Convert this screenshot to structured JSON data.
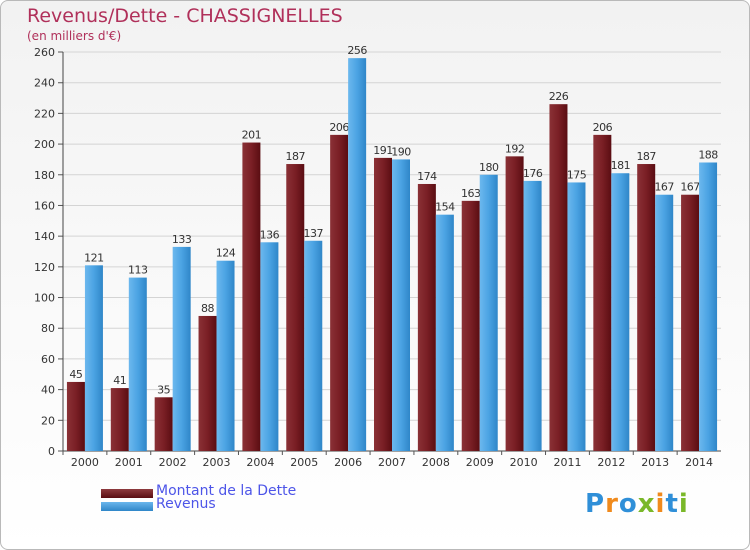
{
  "chart_data": {
    "type": "bar",
    "title": "Revenus/Dette - CHASSIGNELLES",
    "subtitle": "(en milliers d'€)",
    "categories": [
      "2000",
      "2001",
      "2002",
      "2003",
      "2004",
      "2005",
      "2006",
      "2007",
      "2008",
      "2009",
      "2010",
      "2011",
      "2012",
      "2013",
      "2014"
    ],
    "series": [
      {
        "name": "Montant de la Dette",
        "color": "#6e1a1f",
        "values": [
          45,
          41,
          35,
          88,
          201,
          187,
          206,
          191,
          174,
          163,
          192,
          226,
          206,
          187,
          167
        ]
      },
      {
        "name": "Revenus",
        "color": "#4aa3e3",
        "values": [
          121,
          113,
          133,
          124,
          136,
          137,
          256,
          190,
          154,
          180,
          176,
          175,
          181,
          167,
          188
        ]
      }
    ],
    "ylim": [
      0,
      260
    ],
    "yticks": [
      0,
      20,
      40,
      60,
      80,
      100,
      120,
      140,
      160,
      180,
      200,
      220,
      240,
      260
    ],
    "grid": true,
    "xlabel": "",
    "ylabel": "",
    "legend_position": "bottom-left"
  },
  "legend": {
    "dette_label": "Montant de la Dette",
    "revenus_label": "Revenus"
  },
  "logo": {
    "letters": [
      "P",
      "r",
      "o",
      "x",
      "i",
      "t",
      "i"
    ],
    "colors": [
      "#2f8fd8",
      "#f08a1c",
      "#2f8fd8",
      "#7ab829",
      "#f08a1c",
      "#2f8fd8",
      "#7ab829"
    ]
  }
}
